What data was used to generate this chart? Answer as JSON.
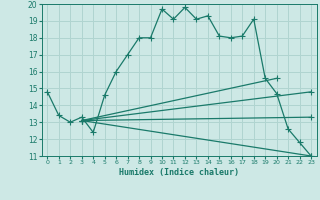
{
  "xlabel": "Humidex (Indice chaleur)",
  "background_color": "#cde8e5",
  "grid_color": "#b0d4d0",
  "line_color": "#1a7a6a",
  "xlim": [
    -0.5,
    23.5
  ],
  "ylim": [
    11,
    20
  ],
  "xticks": [
    0,
    1,
    2,
    3,
    4,
    5,
    6,
    7,
    8,
    9,
    10,
    11,
    12,
    13,
    14,
    15,
    16,
    17,
    18,
    19,
    20,
    21,
    22,
    23
  ],
  "yticks": [
    11,
    12,
    13,
    14,
    15,
    16,
    17,
    18,
    19,
    20
  ],
  "line1_x": [
    0,
    1,
    2,
    3,
    4,
    5,
    6,
    7,
    8,
    9,
    10,
    11,
    12,
    13,
    14,
    15,
    16,
    17,
    18,
    19,
    20,
    21,
    22,
    23
  ],
  "line1_y": [
    14.8,
    13.4,
    13.0,
    13.3,
    12.4,
    14.6,
    16.0,
    17.0,
    18.0,
    18.0,
    19.7,
    19.1,
    19.8,
    19.1,
    19.3,
    18.1,
    18.0,
    18.1,
    19.1,
    15.6,
    14.7,
    12.6,
    11.8,
    11.0
  ],
  "line2_x": [
    3,
    23
  ],
  "line2_y": [
    13.1,
    11.0
  ],
  "line3_x": [
    3,
    23
  ],
  "line3_y": [
    13.1,
    13.3
  ],
  "line4_x": [
    3,
    23
  ],
  "line4_y": [
    13.1,
    14.8
  ],
  "line5_x": [
    3,
    20
  ],
  "line5_y": [
    13.1,
    15.6
  ],
  "markersize": 2.5,
  "linewidth": 0.9
}
